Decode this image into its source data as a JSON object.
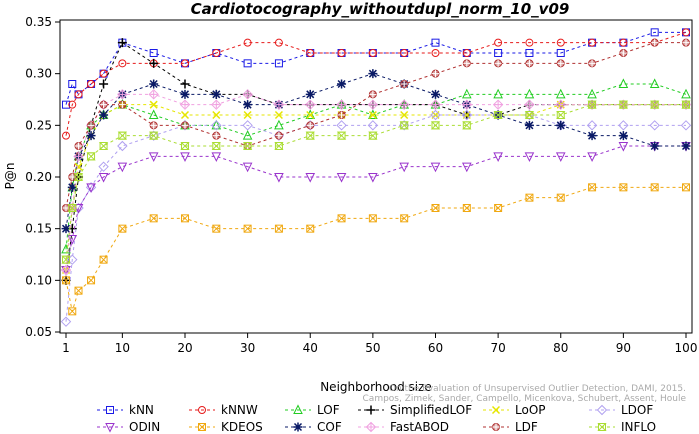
{
  "chart_data": {
    "type": "line",
    "title": "Cardiotocography_withoutdupl_norm_10_v09",
    "xlabel": "Neighborhood size",
    "ylabel": "P@n",
    "xlim": [
      1,
      100
    ],
    "ylim": [
      0.05,
      0.35
    ],
    "x_ticks": [
      1,
      10,
      20,
      30,
      40,
      50,
      60,
      70,
      80,
      90,
      100
    ],
    "y_ticks": [
      "0.05",
      "0.10",
      "0.15",
      "0.20",
      "0.25",
      "0.30",
      "0.35"
    ],
    "x": [
      1,
      2,
      3,
      5,
      7,
      10,
      15,
      20,
      25,
      30,
      35,
      40,
      45,
      50,
      55,
      60,
      65,
      70,
      75,
      80,
      85,
      90,
      95,
      100
    ],
    "series": [
      {
        "name": "kNN",
        "color": "#1a1ae6",
        "marker": "square",
        "values": [
          0.27,
          0.29,
          0.28,
          0.29,
          0.3,
          0.33,
          0.32,
          0.31,
          0.32,
          0.31,
          0.31,
          0.32,
          0.32,
          0.32,
          0.32,
          0.33,
          0.32,
          0.32,
          0.32,
          0.32,
          0.33,
          0.33,
          0.34,
          0.34
        ]
      },
      {
        "name": "kNNW",
        "color": "#e61a1a",
        "marker": "circle",
        "values": [
          0.24,
          0.27,
          0.28,
          0.29,
          0.3,
          0.31,
          0.31,
          0.31,
          0.32,
          0.33,
          0.33,
          0.32,
          0.32,
          0.32,
          0.32,
          0.32,
          0.32,
          0.33,
          0.33,
          0.33,
          0.33,
          0.33,
          0.33,
          0.34
        ]
      },
      {
        "name": "LOF",
        "color": "#22cc22",
        "marker": "triangle",
        "values": [
          0.13,
          0.19,
          0.22,
          0.25,
          0.26,
          0.27,
          0.26,
          0.25,
          0.25,
          0.24,
          0.25,
          0.26,
          0.27,
          0.26,
          0.27,
          0.27,
          0.28,
          0.28,
          0.28,
          0.28,
          0.28,
          0.29,
          0.29,
          0.28
        ]
      },
      {
        "name": "SimplifiedLOF",
        "color": "#000000",
        "marker": "plus",
        "values": [
          0.1,
          0.15,
          0.2,
          0.25,
          0.29,
          0.33,
          0.31,
          0.29,
          0.28,
          0.28,
          0.27,
          0.27,
          0.27,
          0.27,
          0.27,
          0.27,
          0.26,
          0.26,
          0.27,
          0.27,
          0.27,
          0.27,
          0.27,
          0.27
        ]
      },
      {
        "name": "LoOP",
        "color": "#e6e600",
        "marker": "x",
        "values": [
          0.11,
          0.17,
          0.21,
          0.24,
          0.26,
          0.27,
          0.27,
          0.26,
          0.26,
          0.26,
          0.26,
          0.26,
          0.26,
          0.26,
          0.26,
          0.26,
          0.26,
          0.26,
          0.26,
          0.27,
          0.27,
          0.27,
          0.27,
          0.27
        ]
      },
      {
        "name": "LDOF",
        "color": "#b0a0f0",
        "marker": "diamond",
        "values": [
          0.06,
          0.12,
          0.17,
          0.19,
          0.21,
          0.23,
          0.24,
          0.25,
          0.25,
          0.25,
          0.24,
          0.25,
          0.25,
          0.25,
          0.25,
          0.26,
          0.26,
          0.26,
          0.26,
          0.25,
          0.25,
          0.25,
          0.25,
          0.25
        ]
      },
      {
        "name": "ODIN",
        "color": "#9933cc",
        "marker": "down-triangle",
        "values": [
          0.11,
          0.14,
          0.17,
          0.19,
          0.2,
          0.21,
          0.22,
          0.22,
          0.22,
          0.21,
          0.2,
          0.2,
          0.2,
          0.2,
          0.21,
          0.21,
          0.21,
          0.22,
          0.22,
          0.22,
          0.22,
          0.23,
          0.23,
          0.23
        ]
      },
      {
        "name": "KDEOS",
        "color": "#f0a810",
        "marker": "boxed-x",
        "values": [
          0.1,
          0.07,
          0.09,
          0.1,
          0.12,
          0.15,
          0.16,
          0.16,
          0.15,
          0.15,
          0.15,
          0.15,
          0.16,
          0.16,
          0.16,
          0.17,
          0.17,
          0.17,
          0.18,
          0.18,
          0.19,
          0.19,
          0.19,
          0.19
        ]
      },
      {
        "name": "COF",
        "color": "#0a1a66",
        "marker": "star",
        "values": [
          0.15,
          0.19,
          0.22,
          0.24,
          0.26,
          0.28,
          0.29,
          0.28,
          0.28,
          0.27,
          0.27,
          0.28,
          0.29,
          0.3,
          0.29,
          0.28,
          0.27,
          0.26,
          0.25,
          0.25,
          0.24,
          0.24,
          0.23,
          0.23
        ]
      },
      {
        "name": "FastABOD",
        "color": "#f0a0e0",
        "marker": "diamond-plus",
        "values": [
          0.11,
          0.17,
          0.22,
          0.25,
          0.27,
          0.28,
          0.28,
          0.27,
          0.27,
          0.28,
          0.27,
          0.27,
          0.27,
          0.27,
          0.27,
          0.27,
          0.27,
          0.27,
          0.27,
          0.27,
          0.27,
          0.27,
          0.27,
          0.27
        ]
      },
      {
        "name": "LDF",
        "color": "#b03030",
        "marker": "circle-plus",
        "values": [
          0.17,
          0.2,
          0.23,
          0.25,
          0.27,
          0.27,
          0.25,
          0.25,
          0.24,
          0.23,
          0.24,
          0.25,
          0.26,
          0.28,
          0.29,
          0.3,
          0.31,
          0.31,
          0.31,
          0.31,
          0.31,
          0.32,
          0.33,
          0.33
        ]
      },
      {
        "name": "INFLO",
        "color": "#aadd33",
        "marker": "hourglass",
        "values": [
          0.12,
          0.17,
          0.2,
          0.22,
          0.23,
          0.24,
          0.24,
          0.23,
          0.23,
          0.23,
          0.23,
          0.24,
          0.24,
          0.24,
          0.25,
          0.25,
          0.25,
          0.26,
          0.26,
          0.26,
          0.27,
          0.27,
          0.27,
          0.27
        ]
      }
    ],
    "legend_position": "bottom",
    "credit": "Campos, Zimek, Sander, Campello, Micenkova, Schubert, Assent, Houle: On the Evaluation of Unsupervised Outlier Detection, DAMI, 2015."
  }
}
